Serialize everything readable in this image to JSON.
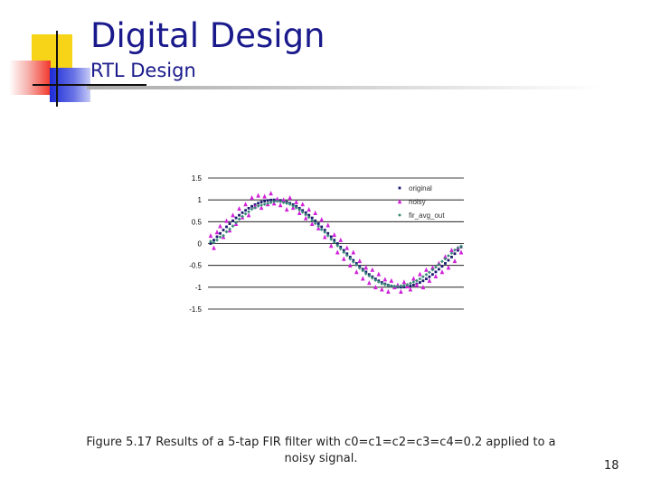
{
  "slide": {
    "title": "Digital Design",
    "subtitle": "RTL Design",
    "caption": "Figure 5.17 Results of a 5-tap FIR filter with c0=c1=c2=c3=c4=0.2 applied to a noisy signal.",
    "page_number": "18",
    "colors": {
      "title": "#1a1a8c",
      "accent_yellow": "#f7d417",
      "accent_blue": "#1c2bd6",
      "accent_red": "#f2372a"
    }
  },
  "chart_data": {
    "type": "scatter",
    "title": "",
    "xlabel": "",
    "ylabel": "",
    "ylim": [
      -1.5,
      1.5
    ],
    "yticks": [
      "1.5",
      "1",
      "0.5",
      "0",
      "-0.5",
      "-1",
      "-1.5"
    ],
    "grid": "horizontal",
    "legend": "top-right",
    "x": [
      0,
      1,
      2,
      3,
      4,
      5,
      6,
      7,
      8,
      9,
      10,
      11,
      12,
      13,
      14,
      15,
      16,
      17,
      18,
      19,
      20,
      21,
      22,
      23,
      24,
      25,
      26,
      27,
      28,
      29,
      30,
      31,
      32,
      33,
      34,
      35,
      36,
      37,
      38,
      39,
      40,
      41,
      42,
      43,
      44,
      45,
      46,
      47,
      48,
      49,
      50,
      51,
      52,
      53,
      54,
      55,
      56,
      57,
      58,
      59,
      60,
      61,
      62,
      63,
      64,
      65,
      66,
      67,
      68,
      69,
      70,
      71,
      72,
      73,
      74,
      75,
      76,
      77,
      78,
      79
    ],
    "series": [
      {
        "name": "original",
        "color": "#1a1a6e",
        "marker": "square",
        "values": [
          0.0,
          0.079,
          0.156,
          0.233,
          0.309,
          0.383,
          0.454,
          0.522,
          0.588,
          0.649,
          0.707,
          0.76,
          0.809,
          0.853,
          0.891,
          0.924,
          0.951,
          0.972,
          0.988,
          0.997,
          1.0,
          0.997,
          0.988,
          0.972,
          0.951,
          0.924,
          0.891,
          0.853,
          0.809,
          0.76,
          0.707,
          0.649,
          0.588,
          0.522,
          0.454,
          0.383,
          0.309,
          0.233,
          0.156,
          0.079,
          0.0,
          -0.079,
          -0.156,
          -0.233,
          -0.309,
          -0.383,
          -0.454,
          -0.522,
          -0.588,
          -0.649,
          -0.707,
          -0.76,
          -0.809,
          -0.853,
          -0.891,
          -0.924,
          -0.951,
          -0.972,
          -0.988,
          -0.997,
          -1.0,
          -0.997,
          -0.988,
          -0.972,
          -0.951,
          -0.924,
          -0.891,
          -0.853,
          -0.809,
          -0.76,
          -0.707,
          -0.649,
          -0.588,
          -0.522,
          -0.454,
          -0.383,
          -0.309,
          -0.233,
          -0.156,
          -0.079
        ]
      },
      {
        "name": "noisy",
        "color": "#d020d8",
        "marker": "triangle",
        "values": [
          0.18,
          -0.1,
          0.26,
          0.4,
          0.15,
          0.52,
          0.3,
          0.65,
          0.45,
          0.8,
          0.6,
          0.9,
          0.65,
          1.05,
          0.85,
          1.1,
          0.82,
          1.08,
          0.9,
          1.15,
          0.92,
          1.02,
          0.88,
          1.0,
          0.78,
          1.05,
          0.82,
          0.95,
          0.7,
          0.9,
          0.58,
          0.78,
          0.45,
          0.7,
          0.35,
          0.55,
          0.15,
          0.42,
          -0.05,
          0.2,
          -0.2,
          0.08,
          -0.35,
          -0.1,
          -0.5,
          -0.2,
          -0.65,
          -0.4,
          -0.8,
          -0.55,
          -0.9,
          -0.6,
          -1.0,
          -0.7,
          -1.05,
          -0.82,
          -1.1,
          -0.85,
          -1.0,
          -0.95,
          -1.1,
          -0.88,
          -0.98,
          -1.05,
          -0.8,
          -0.95,
          -0.7,
          -1.0,
          -0.6,
          -0.85,
          -0.55,
          -0.75,
          -0.45,
          -0.65,
          -0.3,
          -0.55,
          -0.15,
          -0.4,
          -0.1,
          -0.2
        ]
      },
      {
        "name": "fir_avg_out",
        "color": "#3a8a78",
        "marker": "diamond",
        "values": [
          0.05,
          0.02,
          0.08,
          0.15,
          0.18,
          0.27,
          0.33,
          0.4,
          0.48,
          0.56,
          0.62,
          0.68,
          0.73,
          0.79,
          0.82,
          0.86,
          0.88,
          0.9,
          0.92,
          0.94,
          0.96,
          0.97,
          0.96,
          0.94,
          0.92,
          0.9,
          0.86,
          0.82,
          0.77,
          0.72,
          0.66,
          0.6,
          0.53,
          0.46,
          0.4,
          0.32,
          0.26,
          0.18,
          0.1,
          0.03,
          -0.05,
          -0.12,
          -0.2,
          -0.27,
          -0.35,
          -0.42,
          -0.49,
          -0.56,
          -0.62,
          -0.69,
          -0.74,
          -0.79,
          -0.84,
          -0.88,
          -0.92,
          -0.94,
          -0.96,
          -0.97,
          -0.98,
          -0.98,
          -0.97,
          -0.96,
          -0.94,
          -0.91,
          -0.88,
          -0.85,
          -0.81,
          -0.76,
          -0.71,
          -0.66,
          -0.6,
          -0.54,
          -0.48,
          -0.41,
          -0.35,
          -0.28,
          -0.22,
          -0.15,
          -0.1,
          -0.06
        ]
      }
    ]
  }
}
